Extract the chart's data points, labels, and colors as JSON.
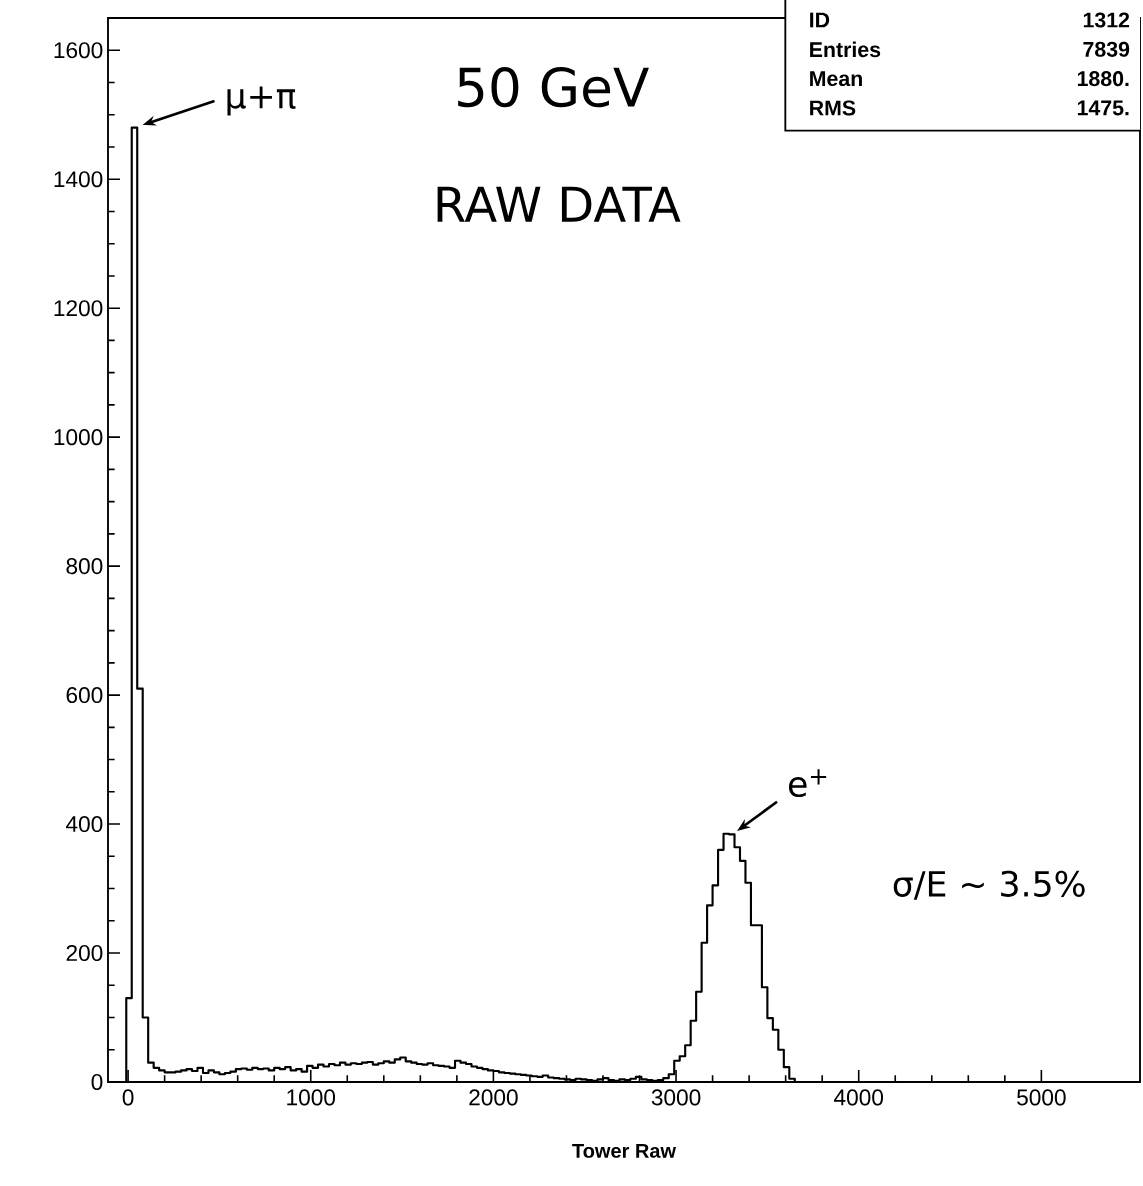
{
  "chart_data": {
    "type": "histogram",
    "title": "50 GeV",
    "subtitle": "RAW DATA",
    "xlabel": "Tower Raw",
    "bins": [
      -10,
      20,
      50,
      80,
      110,
      140,
      170,
      200,
      230,
      260,
      290,
      320,
      350,
      380,
      410,
      440,
      470,
      500,
      530,
      560,
      590,
      620,
      650,
      680,
      710,
      740,
      770,
      800,
      830,
      860,
      890,
      920,
      950,
      980,
      1010,
      1040,
      1070,
      1100,
      1130,
      1160,
      1190,
      1220,
      1250,
      1280,
      1310,
      1340,
      1370,
      1400,
      1430,
      1460,
      1490,
      1520,
      1550,
      1580,
      1610,
      1640,
      1670,
      1700,
      1730,
      1760,
      1790,
      1820,
      1850,
      1880,
      1910,
      1940,
      1970,
      2000,
      2030,
      2060,
      2090,
      2120,
      2150,
      2180,
      2210,
      2240,
      2270,
      2300,
      2330,
      2360,
      2390,
      2420,
      2450,
      2480,
      2510,
      2540,
      2570,
      2600,
      2630,
      2660,
      2690,
      2720,
      2750,
      2780,
      2810,
      2840,
      2870,
      2900,
      2930,
      2960,
      2990,
      3020,
      3050,
      3080,
      3110,
      3140,
      3170,
      3200,
      3230,
      3260,
      3290,
      3320,
      3350,
      3380,
      3410,
      3440,
      3470,
      3500,
      3530,
      3560,
      3590,
      3620,
      3650
    ],
    "values": [
      130,
      1480,
      610,
      100,
      30,
      22,
      18,
      15,
      15,
      16,
      18,
      20,
      17,
      22,
      14,
      18,
      15,
      12,
      14,
      16,
      20,
      21,
      19,
      22,
      20,
      21,
      18,
      22,
      20,
      23,
      18,
      20,
      16,
      25,
      22,
      27,
      24,
      28,
      26,
      30,
      27,
      29,
      28,
      30,
      31,
      27,
      29,
      32,
      30,
      35,
      38,
      32,
      30,
      28,
      27,
      29,
      26,
      25,
      24,
      22,
      33,
      30,
      28,
      24,
      22,
      20,
      18,
      17,
      15,
      14,
      13,
      12,
      11,
      10,
      9,
      8,
      10,
      7,
      6,
      5,
      4,
      3,
      5,
      4,
      3,
      2,
      4,
      6,
      3,
      2,
      4,
      3,
      5,
      8,
      4,
      3,
      2,
      3,
      6,
      12,
      33,
      40,
      57,
      95,
      140,
      216,
      274,
      305,
      360,
      385,
      384,
      364,
      343,
      309,
      243,
      243,
      147,
      99,
      81,
      50,
      23,
      5
    ],
    "color": "#000000",
    "xlim": [
      -110,
      5540
    ],
    "ylim": [
      0,
      1650
    ],
    "xticks": [
      0,
      1000,
      2000,
      3000,
      4000,
      5000
    ],
    "yticks": [
      0,
      200,
      400,
      600,
      800,
      1000,
      1200,
      1400,
      1600
    ],
    "annotations": [
      {
        "text": "μ+π",
        "x": 35,
        "y": 1480
      },
      {
        "text": "e$^{+}$",
        "x": 3290,
        "y": 385
      },
      "σ/E ~ 3.5%",
      "ID",
      "1312",
      "Entries",
      "7839",
      "Mean",
      "1880.",
      "RMS",
      "1475."
    ]
  }
}
